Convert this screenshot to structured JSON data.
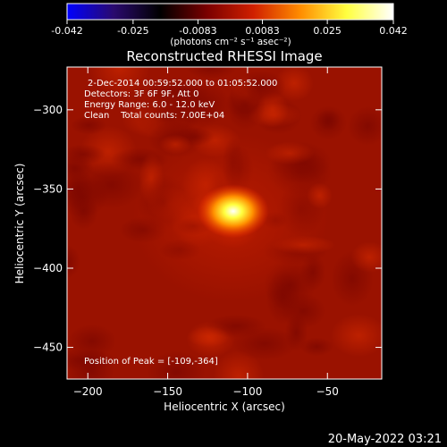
{
  "colorbar": {
    "tick_labels": [
      "-0.042",
      "-0.025",
      "-0.0083",
      "0.0083",
      "0.025",
      "0.042"
    ],
    "tick_values": [
      -0.042,
      -0.025,
      -0.0083,
      0.0083,
      0.025,
      0.042
    ],
    "range": [
      -0.042,
      0.042
    ],
    "units": "(photons cm⁻² s⁻¹ asec⁻²)",
    "colors": [
      "#0000ff",
      "#2a0a6e",
      "#000000",
      "#7a0000",
      "#d02000",
      "#ff8c00",
      "#ffff40",
      "#ffffff"
    ]
  },
  "chart_data": {
    "type": "heatmap",
    "title": "Reconstructed RHESSI Image",
    "xlabel": "Heliocentric X (arcsec)",
    "ylabel": "Heliocentric Y (arcsec)",
    "xlim": [
      -213,
      -16
    ],
    "ylim": [
      -470,
      -273
    ],
    "x_ticks": [
      -200,
      -150,
      -100,
      -50
    ],
    "y_ticks": [
      -300,
      -350,
      -400,
      -450
    ],
    "annotations": [
      "2-Dec-2014 00:59:52.000 to 01:05:52.000",
      "Detectors: 3F 6F 9F, Att 0",
      "Energy Range: 6.0 - 12.0 keV",
      "Clean    Total counts: 7.00E+04"
    ],
    "peak_label": "Position of Peak = [-109,-364]",
    "peak": {
      "x": -109,
      "y": -364
    },
    "colors": {
      "background": "#9a1200",
      "mid": "#c01e00",
      "core": "#ffff40"
    }
  },
  "footer": {
    "date": "20-May-2022 03:21"
  }
}
